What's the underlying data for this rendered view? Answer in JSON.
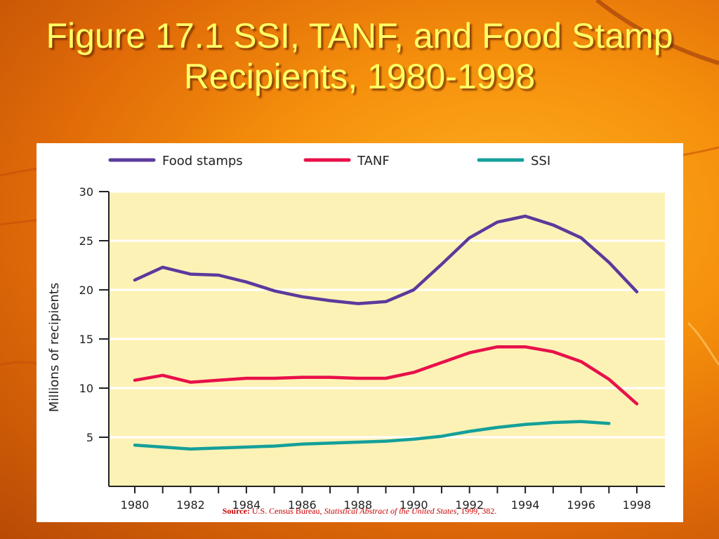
{
  "slide": {
    "title": "Figure 17.1 SSI, TANF, and Food Stamp Recipients, 1980-1998"
  },
  "source": {
    "label": "Source:",
    "publisher": "U.S. Census Bureau,",
    "publication": "Statistical Abstract of the United States",
    "details": ", 1999, 382."
  },
  "colors": {
    "food_stamps": "#5b3a9c",
    "tanf": "#e8104a",
    "ssi": "#14a09a",
    "plot_bg": "#fdf2b6"
  },
  "chart_data": {
    "type": "line",
    "title": "",
    "xlabel": "",
    "ylabel": "Millions of recipients",
    "xlim": [
      1980,
      1998
    ],
    "ylim": [
      0,
      30
    ],
    "x_ticks": [
      1980,
      1981,
      1982,
      1983,
      1984,
      1985,
      1986,
      1987,
      1988,
      1989,
      1990,
      1991,
      1992,
      1993,
      1994,
      1995,
      1996,
      1997,
      1998
    ],
    "x_tick_labels": [
      "1980",
      "1982",
      "1984",
      "1986",
      "1988",
      "1990",
      "1992",
      "1994",
      "1996",
      "1998"
    ],
    "y_ticks": [
      5,
      10,
      15,
      20,
      25,
      30
    ],
    "y_tick_labels": [
      "5",
      "10",
      "15",
      "20",
      "25",
      "30"
    ],
    "grid": true,
    "legend": "top",
    "series": [
      {
        "name": "Food stamps",
        "color": "#5b3a9c",
        "x": [
          1980,
          1981,
          1982,
          1983,
          1984,
          1985,
          1986,
          1987,
          1988,
          1989,
          1990,
          1991,
          1992,
          1993,
          1994,
          1995,
          1996,
          1997,
          1998
        ],
        "values": [
          21.0,
          22.3,
          21.6,
          21.5,
          20.8,
          19.9,
          19.3,
          18.9,
          18.6,
          18.8,
          20.0,
          22.6,
          25.3,
          26.9,
          27.5,
          26.6,
          25.3,
          22.8,
          19.8
        ]
      },
      {
        "name": "TANF",
        "color": "#e8104a",
        "x": [
          1980,
          1981,
          1982,
          1983,
          1984,
          1985,
          1986,
          1987,
          1988,
          1989,
          1990,
          1991,
          1992,
          1993,
          1994,
          1995,
          1996,
          1997,
          1998
        ],
        "values": [
          10.8,
          11.3,
          10.6,
          10.8,
          11.0,
          11.0,
          11.1,
          11.1,
          11.0,
          11.0,
          11.6,
          12.6,
          13.6,
          14.2,
          14.2,
          13.7,
          12.7,
          10.9,
          8.4
        ]
      },
      {
        "name": "SSI",
        "color": "#14a09a",
        "x": [
          1980,
          1981,
          1982,
          1983,
          1984,
          1985,
          1986,
          1987,
          1988,
          1989,
          1990,
          1991,
          1992,
          1993,
          1994,
          1995,
          1996,
          1997
        ],
        "values": [
          4.2,
          4.0,
          3.8,
          3.9,
          4.0,
          4.1,
          4.3,
          4.4,
          4.5,
          4.6,
          4.8,
          5.1,
          5.6,
          6.0,
          6.3,
          6.5,
          6.6,
          6.4
        ]
      }
    ]
  }
}
